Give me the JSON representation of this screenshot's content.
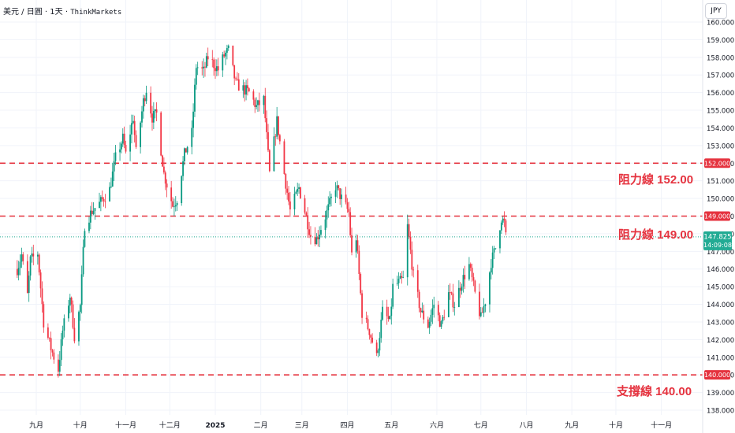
{
  "header": {
    "pair": "美元 / 日圓",
    "sep1": "·",
    "interval": "1天",
    "sep2": "·",
    "source": "ThinkMarkets"
  },
  "currency_button": "JPY",
  "annotations": [
    {
      "text": "阻力線 152.00",
      "level": 152.0
    },
    {
      "text": "阻力線 149.00",
      "level": 149.0
    },
    {
      "text": "支撐線 140.00",
      "level": 140.0
    }
  ],
  "level_tags": [
    "152.000",
    "149.000",
    "140.000"
  ],
  "price_tag": {
    "price": "147.825",
    "timer": "14:09:08"
  },
  "colors": {
    "up": "#089981",
    "down": "#f23645",
    "level": "#e5333f",
    "last_price": "#22ab94",
    "grid": "#f0f3fa"
  },
  "chart_data": {
    "type": "candlestick",
    "title": "",
    "y_axis": {
      "side": "right",
      "min": 138.0,
      "max": 160.0,
      "ticks": [
        "138.000",
        "139.000",
        "140.000",
        "141.000",
        "142.000",
        "143.000",
        "144.000",
        "145.000",
        "146.000",
        "147.000",
        "148.000",
        "149.000",
        "150.000",
        "151.000",
        "152.000",
        "153.000",
        "154.000",
        "155.000",
        "156.000",
        "157.000",
        "158.000",
        "159.000",
        "160.000"
      ]
    },
    "x_axis": {
      "labels": [
        "九月",
        "十月",
        "十一月",
        "十二月",
        "2025",
        "二月",
        "三月",
        "四月",
        "五月",
        "六月",
        "七月",
        "八月",
        "九月",
        "十月",
        "十一月"
      ]
    },
    "grid": true,
    "horizontal_levels": [
      152.0,
      149.0,
      140.0
    ],
    "last_price": 147.825,
    "price_path": [
      [
        "2024-08-19",
        146.0
      ],
      [
        "2024-08-22",
        146.8
      ],
      [
        "2024-08-26",
        144.5
      ],
      [
        "2024-08-28",
        146.5
      ],
      [
        "2024-09-02",
        146.9
      ],
      [
        "2024-09-06",
        143.0
      ],
      [
        "2024-09-11",
        141.5
      ],
      [
        "2024-09-16",
        140.3
      ],
      [
        "2024-09-19",
        142.5
      ],
      [
        "2024-09-24",
        144.5
      ],
      [
        "2024-09-27",
        142.2
      ],
      [
        "2024-10-01",
        143.9
      ],
      [
        "2024-10-04",
        148.5
      ],
      [
        "2024-10-09",
        149.3
      ],
      [
        "2024-10-15",
        149.8
      ],
      [
        "2024-10-21",
        150.5
      ],
      [
        "2024-10-25",
        152.3
      ],
      [
        "2024-10-30",
        153.4
      ],
      [
        "2024-11-01",
        152.5
      ],
      [
        "2024-11-06",
        154.6
      ],
      [
        "2024-11-08",
        152.6
      ],
      [
        "2024-11-13",
        155.5
      ],
      [
        "2024-11-15",
        156.2
      ],
      [
        "2024-11-19",
        154.6
      ],
      [
        "2024-11-22",
        154.8
      ],
      [
        "2024-11-27",
        151.4
      ],
      [
        "2024-12-03",
        149.6
      ],
      [
        "2024-12-06",
        150.0
      ],
      [
        "2024-12-11",
        152.5
      ],
      [
        "2024-12-16",
        153.7
      ],
      [
        "2024-12-19",
        157.5
      ],
      [
        "2024-12-24",
        157.2
      ],
      [
        "2024-12-27",
        158.0
      ],
      [
        "2025-01-03",
        157.3
      ],
      [
        "2025-01-07",
        158.1
      ],
      [
        "2025-01-10",
        158.4
      ],
      [
        "2025-01-15",
        156.5
      ],
      [
        "2025-01-20",
        156.2
      ],
      [
        "2025-01-24",
        156.0
      ],
      [
        "2025-01-29",
        155.2
      ],
      [
        "2025-02-03",
        155.6
      ],
      [
        "2025-02-07",
        151.4
      ],
      [
        "2025-02-12",
        154.4
      ],
      [
        "2025-02-17",
        151.4
      ],
      [
        "2025-02-21",
        149.3
      ],
      [
        "2025-02-27",
        150.6
      ],
      [
        "2025-03-03",
        149.3
      ],
      [
        "2025-03-07",
        147.9
      ],
      [
        "2025-03-11",
        147.7
      ],
      [
        "2025-03-18",
        149.2
      ],
      [
        "2025-03-24",
        150.7
      ],
      [
        "2025-03-28",
        150.0
      ],
      [
        "2025-04-02",
        149.2
      ],
      [
        "2025-04-04",
        146.8
      ],
      [
        "2025-04-07",
        147.8
      ],
      [
        "2025-04-11",
        143.5
      ],
      [
        "2025-04-16",
        142.5
      ],
      [
        "2025-04-21",
        141.0
      ],
      [
        "2025-04-25",
        143.6
      ],
      [
        "2025-04-30",
        143.0
      ],
      [
        "2025-05-02",
        145.0
      ],
      [
        "2025-05-09",
        145.4
      ],
      [
        "2025-05-12",
        148.4
      ],
      [
        "2025-05-16",
        145.6
      ],
      [
        "2025-05-21",
        143.6
      ],
      [
        "2025-05-26",
        142.8
      ],
      [
        "2025-05-30",
        144.0
      ],
      [
        "2025-06-04",
        142.8
      ],
      [
        "2025-06-09",
        144.6
      ],
      [
        "2025-06-13",
        144.0
      ],
      [
        "2025-06-18",
        145.3
      ],
      [
        "2025-06-23",
        146.2
      ],
      [
        "2025-06-27",
        144.6
      ],
      [
        "2025-07-01",
        143.2
      ],
      [
        "2025-07-04",
        144.2
      ],
      [
        "2025-07-08",
        146.4
      ],
      [
        "2025-07-11",
        147.2
      ],
      [
        "2025-07-15",
        148.9
      ],
      [
        "2025-07-17",
        148.6
      ],
      [
        "2025-07-18",
        147.825
      ]
    ]
  }
}
